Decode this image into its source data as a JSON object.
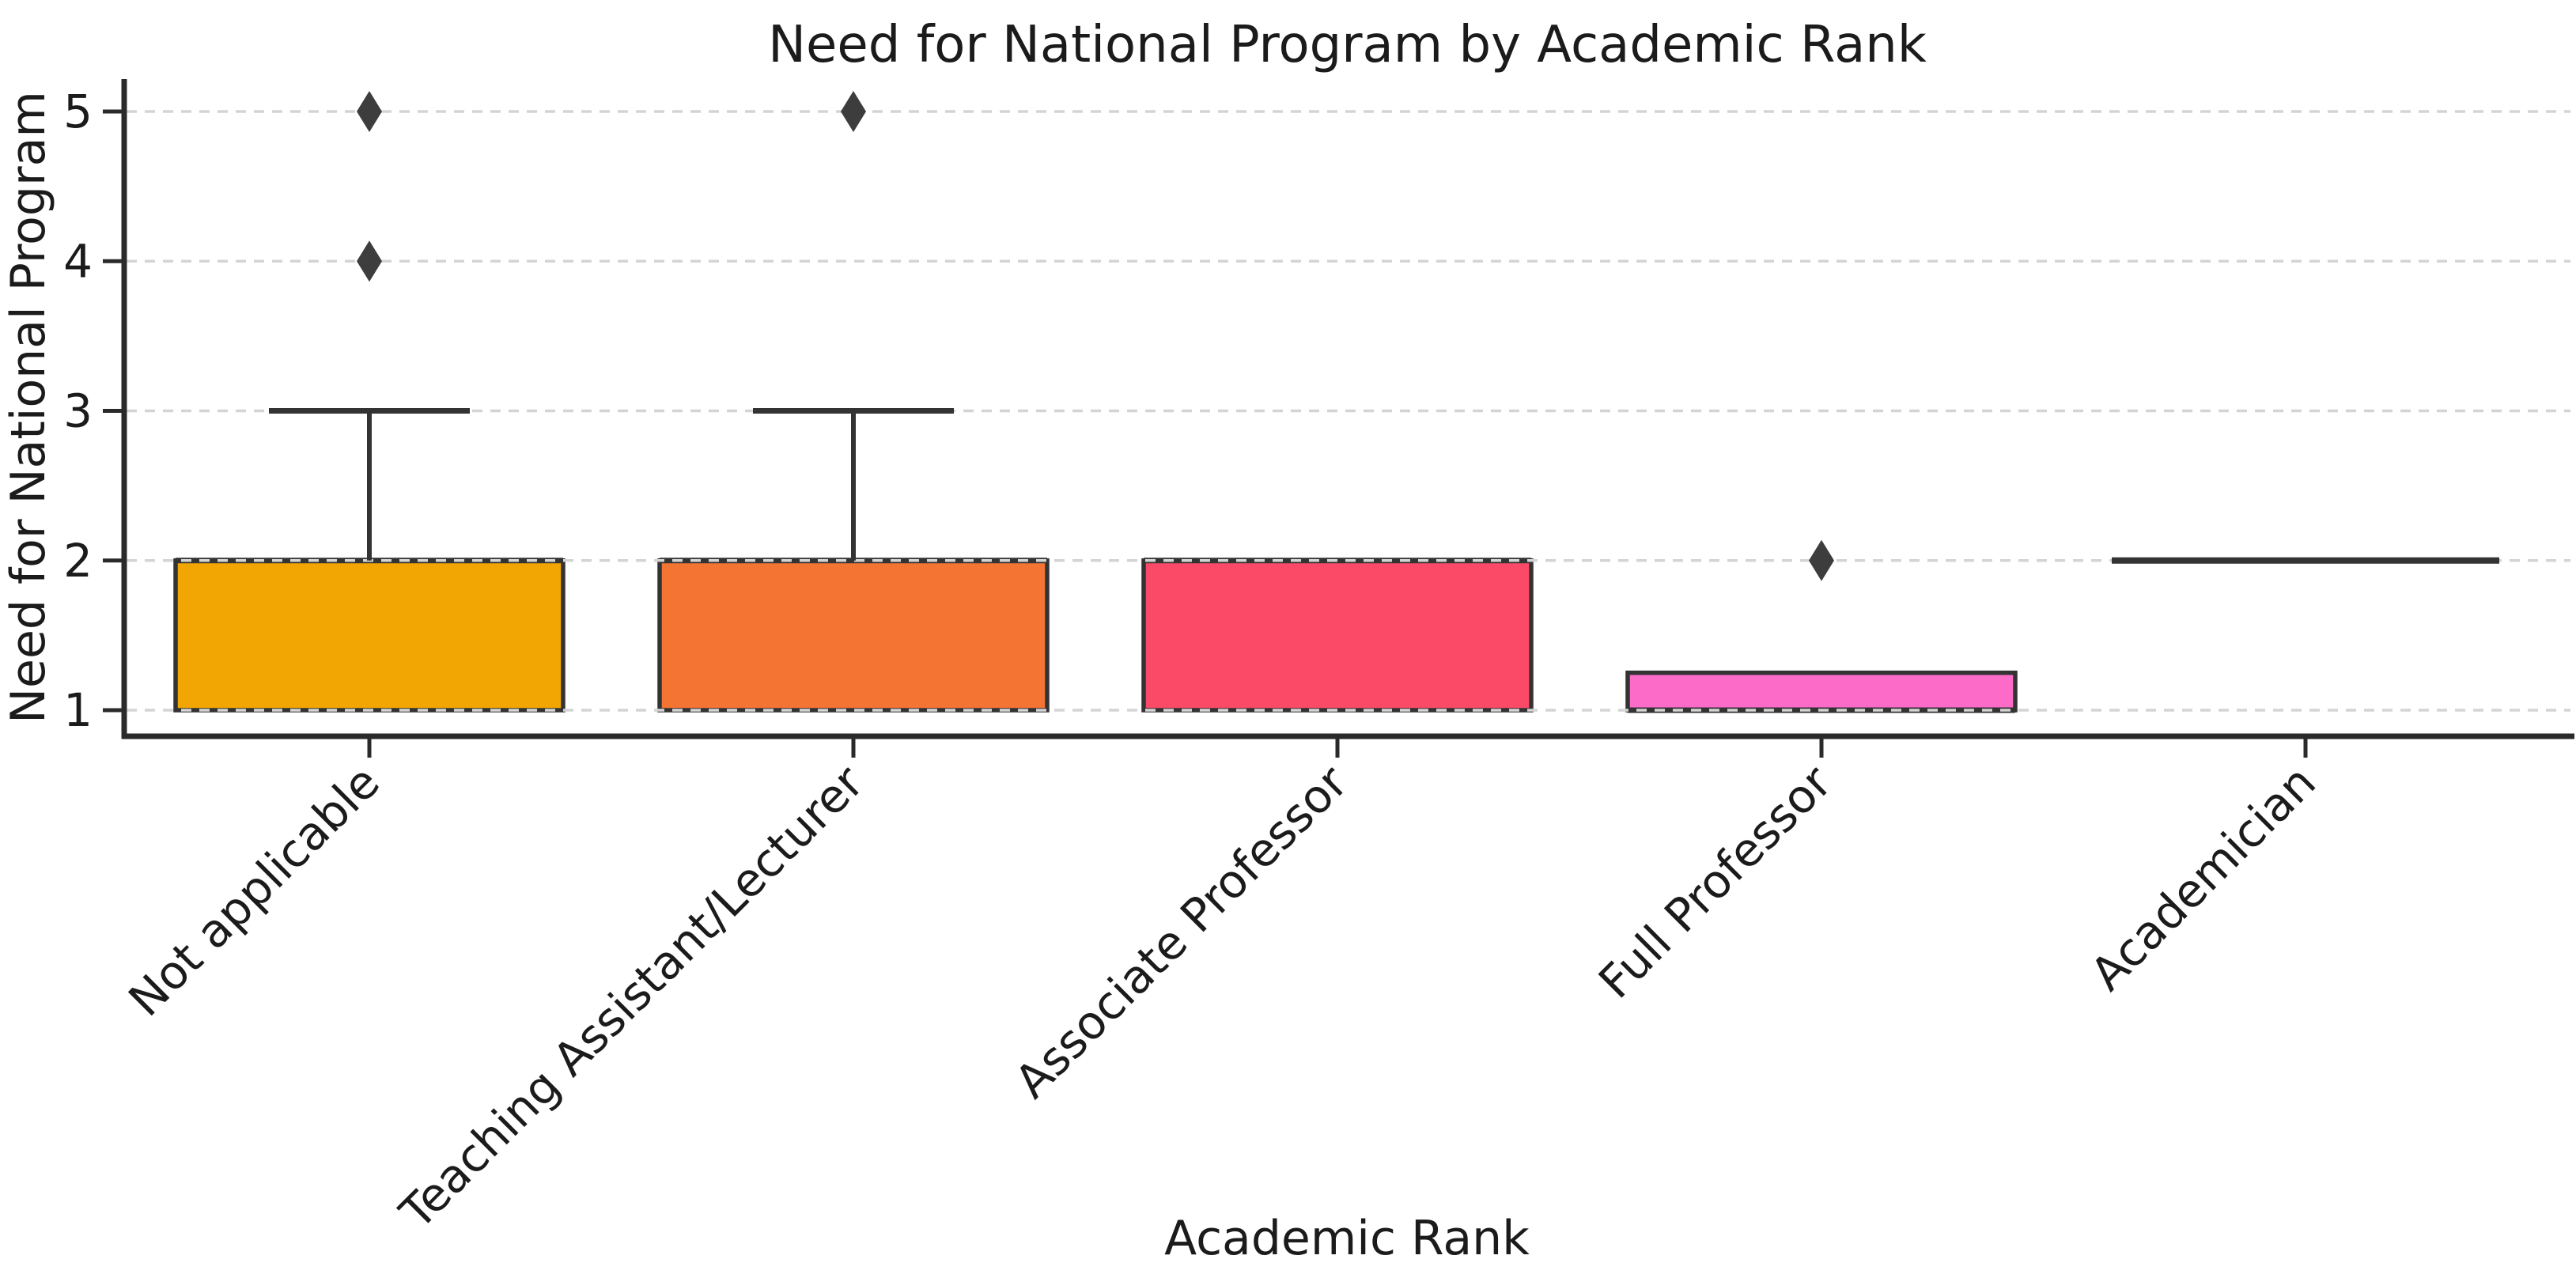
{
  "chart_data": {
    "type": "box",
    "title": "Need for National Program by Academic Rank",
    "xlabel": "Academic Rank",
    "ylabel": "Need for National Program",
    "categories": [
      "Not applicable",
      "Teaching Assistant/Lecturer",
      "Associate Professor",
      "Full Professor",
      "Academician"
    ],
    "y_ticks": [
      1,
      2,
      3,
      4,
      5
    ],
    "ylim": [
      0.8,
      5.3
    ],
    "grid": "horizontal light-gray dashed",
    "legend": "none",
    "boxes": [
      {
        "label": "Not applicable",
        "q1": 1,
        "median": 2,
        "q3": 2,
        "whisker_low": 1,
        "whisker_high": 3,
        "outliers": [
          4,
          5
        ],
        "fill": "#F2A604"
      },
      {
        "label": "Teaching Assistant/Lecturer",
        "q1": 1,
        "median": 2,
        "q3": 2,
        "whisker_low": 1,
        "whisker_high": 3,
        "outliers": [
          5
        ],
        "fill": "#F47433"
      },
      {
        "label": "Associate Professor",
        "q1": 1,
        "median": 2,
        "q3": 2,
        "whisker_low": 1,
        "whisker_high": 2,
        "outliers": [],
        "fill": "#FA4A67"
      },
      {
        "label": "Full Professor",
        "q1": 1,
        "median": 1,
        "q3": 1.25,
        "whisker_low": 1,
        "whisker_high": 1.25,
        "outliers": [
          2
        ],
        "fill": "#FC6BC8"
      },
      {
        "label": "Academician",
        "q1": 2,
        "median": 2,
        "q3": 2,
        "whisker_low": 2,
        "whisker_high": 2,
        "outliers": [],
        "fill": null
      }
    ],
    "style": {
      "box_edge_color": "#333333",
      "whisker_color": "#333333",
      "flier_color": "#3d3d3d",
      "flier_marker": "diamond",
      "grid_color": "#d4d4d4",
      "spine_color": "#2a2a2a",
      "text_color": "#1b1b1b",
      "background": "#ffffff"
    }
  }
}
